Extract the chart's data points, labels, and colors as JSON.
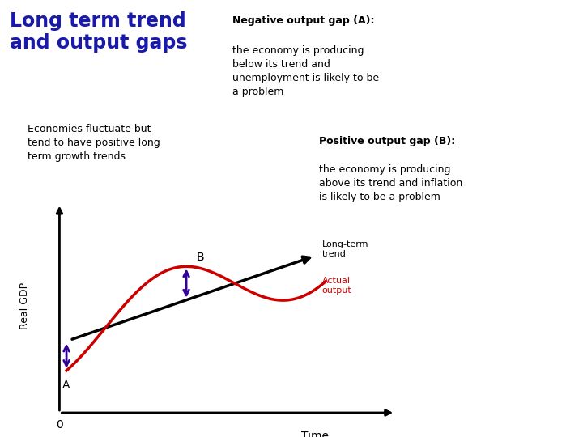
{
  "title": "Long term trend\nand output gaps",
  "title_color": "#1a1aaa",
  "subtitle_box_text": "Economies fluctuate but\ntend to have positive long\nterm growth trends",
  "subtitle_box_color": "#FF88CC",
  "neg_gap_title": "Negative output gap (A):",
  "neg_gap_body": "the economy is producing\nbelow its trend and\nunemployment is likely to be\na problem",
  "neg_gap_box_color": "#CC99FF",
  "pos_gap_title": "Positive output gap (B):",
  "pos_gap_body": "the economy is producing\nabove its trend and inflation\nis likely to be a problem",
  "pos_gap_box_color": "#FFFFAA",
  "ylabel": "Real GDP",
  "xlabel": "Time",
  "zero_label": "0",
  "trend_label": "Long-term\ntrend",
  "actual_label": "Actual\noutput",
  "point_a_label": "A",
  "point_b_label": "B",
  "trend_color": "#000000",
  "actual_color": "#CC0000",
  "arrow_color": "#330099",
  "bg_color": "#FFFFFF"
}
